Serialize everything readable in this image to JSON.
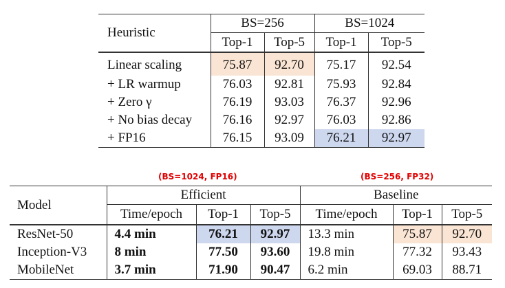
{
  "table1": {
    "heuristic_header": "Heuristic",
    "groups": [
      "BS=256",
      "BS=1024"
    ],
    "subheaders": [
      "Top-1",
      "Top-5",
      "Top-1",
      "Top-5"
    ],
    "rows": [
      {
        "label": "Linear scaling",
        "values": [
          "75.87",
          "92.70",
          "75.17",
          "92.54"
        ]
      },
      {
        "label": "+ LR warmup",
        "values": [
          "76.03",
          "92.81",
          "75.93",
          "92.84"
        ]
      },
      {
        "label": "+ Zero γ",
        "values": [
          "76.19",
          "93.03",
          "76.37",
          "92.96"
        ]
      },
      {
        "label": "+ No bias decay",
        "values": [
          "76.16",
          "92.97",
          "76.03",
          "92.86"
        ]
      },
      {
        "label": "+ FP16",
        "values": [
          "76.15",
          "93.09",
          "76.21",
          "92.97"
        ]
      }
    ],
    "highlight_colors": {
      "orange": "#fae4d3",
      "blue": "#cdd7ee"
    }
  },
  "annotations": {
    "efficient": "(BS=1024, FP16)",
    "baseline": "(BS=256, FP32)",
    "color": "#e00000"
  },
  "table2": {
    "model_header": "Model",
    "groups": [
      "Efficient",
      "Baseline"
    ],
    "subheaders": [
      "Time/epoch",
      "Top-1",
      "Top-5",
      "Time/epoch",
      "Top-1",
      "Top-5"
    ],
    "rows": [
      {
        "model": "ResNet-50",
        "values": [
          "4.4 min",
          "76.21",
          "92.97",
          "13.3 min",
          "75.87",
          "92.70"
        ]
      },
      {
        "model": "Inception-V3",
        "values": [
          "8 min",
          "77.50",
          "93.60",
          "19.8 min",
          "77.32",
          "93.43"
        ]
      },
      {
        "model": "MobileNet",
        "values": [
          "3.7 min",
          "71.90",
          "90.47",
          "6.2 min",
          "69.03",
          "88.71"
        ]
      }
    ]
  }
}
